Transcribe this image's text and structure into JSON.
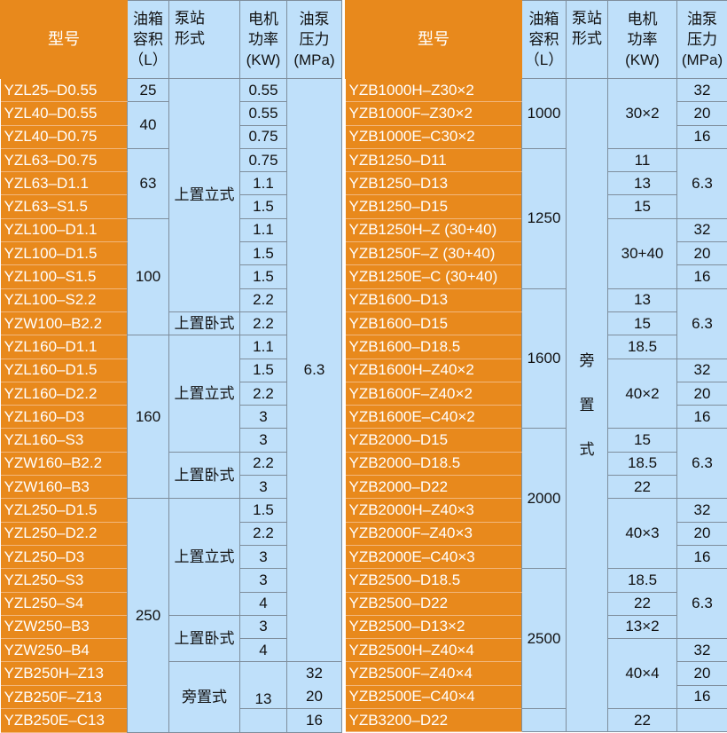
{
  "colors": {
    "model_bg": "#e8891c",
    "cell_bg": "#bfe0fa",
    "border": "#7f8e9c"
  },
  "left_table": {
    "headers": {
      "model": "型号",
      "tank": [
        "油箱",
        "容积",
        "（L）"
      ],
      "style": [
        "泵站",
        "形式"
      ],
      "power": [
        "电机",
        "功率",
        "(KW)"
      ],
      "pressure": [
        "油泵",
        "压力",
        "(MPa)"
      ]
    },
    "models": [
      "YZL25–D0.55",
      "YZL40–D0.55",
      "YZL40–D0.75",
      "YZL63–D0.75",
      "YZL63–D1.1",
      "YZL63–S1.5",
      "YZL100–D1.1",
      "YZL100–D1.5",
      "YZL100–S1.5",
      "YZL100–S2.2",
      "YZW100–B2.2",
      "YZL160–D1.1",
      "YZL160–D1.5",
      "YZL160–D2.2",
      "YZL160–D3",
      "YZL160–S3",
      "YZW160–B2.2",
      "YZW160–B3",
      "YZL250–D1.5",
      "YZL250–D2.2",
      "YZL250–D3",
      "YZL250–S3",
      "YZL250–S4",
      "YZW250–B3",
      "YZW250–B4",
      "YZB250H–Z13",
      "YZB250F–Z13",
      "YZB250E–C13"
    ],
    "tank": [
      {
        "v": "25",
        "span": 1
      },
      {
        "v": "40",
        "span": 2
      },
      {
        "v": "63",
        "span": 3
      },
      {
        "v": "100",
        "span": 5
      },
      {
        "v": "160",
        "span": 7
      },
      {
        "v": "250",
        "span": 10
      }
    ],
    "style": [
      {
        "v": "上置立式",
        "span": 10
      },
      {
        "v": "上置卧式",
        "span": 1
      },
      {
        "v": "上置立式",
        "span": 5
      },
      {
        "v": "上置卧式",
        "span": 2
      },
      {
        "v": "上置立式",
        "span": 5
      },
      {
        "v": "上置卧式",
        "span": 2
      },
      {
        "v": "旁置式",
        "span": 3
      }
    ],
    "power": [
      {
        "v": "0.55",
        "span": 1
      },
      {
        "v": "0.55",
        "span": 1
      },
      {
        "v": "0.75",
        "span": 1
      },
      {
        "v": "0.75",
        "span": 1
      },
      {
        "v": "1.1",
        "span": 1
      },
      {
        "v": "1.5",
        "span": 1
      },
      {
        "v": "1.1",
        "span": 1
      },
      {
        "v": "1.5",
        "span": 1
      },
      {
        "v": "1.5",
        "span": 1
      },
      {
        "v": "2.2",
        "span": 1
      },
      {
        "v": "2.2",
        "span": 1
      },
      {
        "v": "1.1",
        "span": 1
      },
      {
        "v": "1.5",
        "span": 1
      },
      {
        "v": "2.2",
        "span": 1
      },
      {
        "v": "3",
        "span": 1
      },
      {
        "v": "3",
        "span": 1
      },
      {
        "v": "2.2",
        "span": 1
      },
      {
        "v": "3",
        "span": 1
      },
      {
        "v": "1.5",
        "span": 1
      },
      {
        "v": "2.2",
        "span": 1
      },
      {
        "v": "3",
        "span": 1
      },
      {
        "v": "3",
        "span": 1
      },
      {
        "v": "4",
        "span": 1
      },
      {
        "v": "3",
        "span": 1
      },
      {
        "v": "4",
        "span": 1
      },
      {
        "v": "13",
        "span": 2,
        "align": "bottom"
      },
      {
        "v": "",
        "span": 1
      }
    ],
    "pressure": [
      {
        "v": "6.3",
        "span": 25
      },
      {
        "v": [
          "32",
          "20"
        ],
        "span": 2
      },
      {
        "v": "16",
        "span": 1
      }
    ]
  },
  "right_table": {
    "headers": {
      "model": "型号",
      "tank": [
        "油箱",
        "容积",
        "（L）"
      ],
      "style": [
        "泵站",
        "形式"
      ],
      "power": [
        "电机",
        "功率",
        "(KW)"
      ],
      "pressure": [
        "油泵",
        "压力",
        "(MPa)"
      ]
    },
    "models": [
      "YZB1000H–Z30×2",
      "YZB1000F–Z30×2",
      "YZB1000E–C30×2",
      "YZB1250–D11",
      "YZB1250–D13",
      "YZB1250–D15",
      "YZB1250H–Z (30+40)",
      "YZB1250F–Z (30+40)",
      "YZB1250E–C (30+40)",
      "YZB1600–D13",
      "YZB1600–D15",
      "YZB1600–D18.5",
      "YZB1600H–Z40×2",
      "YZB1600F–Z40×2",
      "YZB1600E–C40×2",
      "YZB2000–D15",
      "YZB2000–D18.5",
      "YZB2000–D22",
      "YZB2000H–Z40×3",
      "YZB2000F–Z40×3",
      "YZB2000E–C40×3",
      "YZB2500–D18.5",
      "YZB2500–D22",
      "YZB2500–D13×2",
      "YZB2500H–Z40×4",
      "YZB2500F–Z40×4",
      "YZB2500E–C40×4",
      "YZB3200–D22"
    ],
    "tank": [
      {
        "v": "1000",
        "span": 3
      },
      {
        "v": "1250",
        "span": 6
      },
      {
        "v": "1600",
        "span": 6
      },
      {
        "v": "2000",
        "span": 6
      },
      {
        "v": "2500",
        "span": 6
      },
      {
        "v": "",
        "span": 1
      }
    ],
    "style": [
      {
        "v": [
          "旁",
          "置",
          "式"
        ],
        "span": 28,
        "vertical": true
      }
    ],
    "power": [
      {
        "v": "30×2",
        "span": 3
      },
      {
        "v": "11",
        "span": 1
      },
      {
        "v": "13",
        "span": 1
      },
      {
        "v": "15",
        "span": 1
      },
      {
        "v": "30+40",
        "span": 3
      },
      {
        "v": "13",
        "span": 1
      },
      {
        "v": "15",
        "span": 1
      },
      {
        "v": "18.5",
        "span": 1
      },
      {
        "v": "40×2",
        "span": 3
      },
      {
        "v": "15",
        "span": 1
      },
      {
        "v": "18.5",
        "span": 1
      },
      {
        "v": "22",
        "span": 1
      },
      {
        "v": "40×3",
        "span": 3
      },
      {
        "v": "18.5",
        "span": 1
      },
      {
        "v": "22",
        "span": 1
      },
      {
        "v": "13×2",
        "span": 1
      },
      {
        "v": "40×4",
        "span": 3
      },
      {
        "v": "22",
        "span": 1
      }
    ],
    "pressure": [
      {
        "v": "32",
        "span": 1
      },
      {
        "v": "20",
        "span": 1
      },
      {
        "v": "16",
        "span": 1
      },
      {
        "v": "6.3",
        "span": 3
      },
      {
        "v": "32",
        "span": 1
      },
      {
        "v": "20",
        "span": 1
      },
      {
        "v": "16",
        "span": 1
      },
      {
        "v": "6.3",
        "span": 3
      },
      {
        "v": "32",
        "span": 1
      },
      {
        "v": "20",
        "span": 1
      },
      {
        "v": "16",
        "span": 1
      },
      {
        "v": "6.3",
        "span": 3
      },
      {
        "v": "32",
        "span": 1
      },
      {
        "v": "20",
        "span": 1
      },
      {
        "v": "16",
        "span": 1
      },
      {
        "v": "6.3",
        "span": 3
      },
      {
        "v": "32",
        "span": 1
      },
      {
        "v": "20",
        "span": 1
      },
      {
        "v": "16",
        "span": 1
      },
      {
        "v": "",
        "span": 1
      }
    ]
  }
}
